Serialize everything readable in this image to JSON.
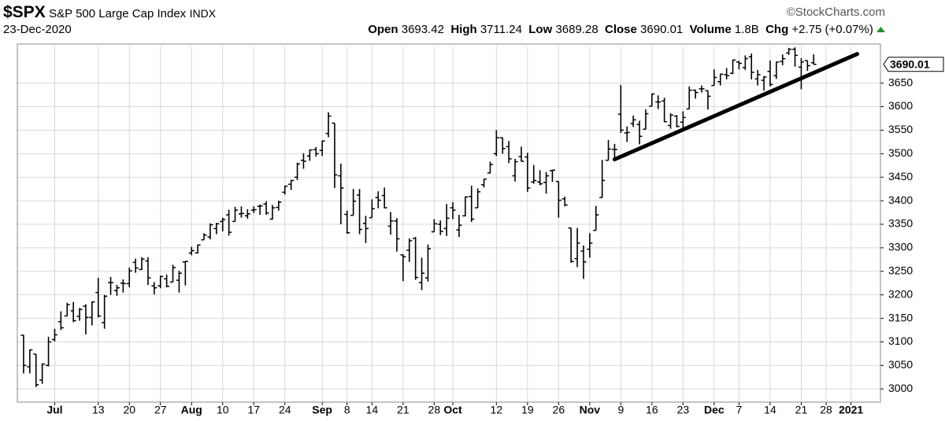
{
  "header": {
    "symbol": "$SPX",
    "name": "S&P 500 Large Cap Index",
    "exchange": "INDX",
    "source": "©StockCharts.com",
    "date": "23-Dec-2020",
    "open_label": "Open",
    "open": 3693.42,
    "high_label": "High",
    "high": 3711.24,
    "low_label": "Low",
    "low": 3689.28,
    "close_label": "Close",
    "close": 3690.01,
    "volume_label": "Volume",
    "volume": "1.8B",
    "change_label": "Chg",
    "change": "+2.75 (+0.07%)"
  },
  "chart_data": {
    "type": "ohlc",
    "color": "#000000",
    "grid": true,
    "ylim": [
      2972,
      3728
    ],
    "yticks": [
      3000,
      3050,
      3100,
      3150,
      3200,
      3250,
      3300,
      3350,
      3400,
      3450,
      3500,
      3550,
      3600,
      3650
    ],
    "categories": [
      null,
      null,
      null,
      null,
      null,
      "Jul",
      null,
      null,
      null,
      null,
      null,
      null,
      "13",
      null,
      null,
      null,
      null,
      "20",
      null,
      null,
      null,
      null,
      "27",
      null,
      null,
      null,
      null,
      "Aug",
      null,
      null,
      null,
      null,
      "10",
      null,
      null,
      null,
      null,
      "17",
      null,
      null,
      null,
      null,
      "24",
      null,
      null,
      null,
      null,
      null,
      "Sep",
      null,
      null,
      null,
      "8",
      null,
      null,
      null,
      "14",
      null,
      null,
      null,
      null,
      "21",
      null,
      null,
      null,
      null,
      "28",
      null,
      null,
      "Oct",
      null,
      null,
      null,
      null,
      null,
      null,
      "12",
      null,
      null,
      null,
      null,
      "19",
      null,
      null,
      null,
      null,
      "26",
      null,
      null,
      null,
      null,
      "Nov",
      null,
      null,
      null,
      null,
      "9",
      null,
      null,
      null,
      null,
      "16",
      null,
      null,
      null,
      null,
      "23",
      null,
      null,
      null,
      null,
      "Dec",
      null,
      null,
      null,
      "7",
      null,
      null,
      null,
      null,
      "14",
      null,
      null,
      null,
      null,
      "21",
      null,
      null,
      null,
      "28",
      null,
      null,
      null,
      "2021",
      null,
      null,
      null,
      null
    ],
    "open": [
      3114,
      3047,
      3074,
      3019,
      3050,
      3105,
      3143,
      3155,
      3166,
      3154,
      3176,
      3152,
      3205,
      3141,
      3226,
      3209,
      3225,
      3224,
      3269,
      3254,
      3272,
      3219,
      3219,
      3234,
      3227,
      3231,
      3270,
      3289,
      3289,
      3317,
      3323,
      3341,
      3356,
      3370,
      3356,
      3372,
      3368,
      3380,
      3388,
      3393,
      3361,
      3386,
      3418,
      3435,
      3450,
      3486,
      3495,
      3509,
      3507,
      3543,
      3565,
      3453,
      3371,
      3369,
      3412,
      3352,
      3364,
      3407,
      3411,
      3346,
      3357,
      3285,
      3295,
      3320,
      3226,
      3236,
      3334,
      3350,
      3341,
      3385,
      3338,
      3368,
      3409,
      3385,
      3434,
      3459,
      3500,
      3534,
      3515,
      3453,
      3494,
      3493,
      3440,
      3440,
      3439,
      3464,
      3441,
      3404,
      3342,
      3277,
      3293,
      3297,
      3337,
      3407,
      3486,
      3509,
      3584,
      3544,
      3564,
      3562,
      3552,
      3601,
      3610,
      3612,
      3560,
      3580,
      3567,
      3595,
      3635,
      3638,
      3634,
      3645,
      3653,
      3668,
      3671,
      3695,
      3683,
      3706,
      3659,
      3656,
      3675,
      3666,
      3696,
      3714,
      3722,
      3684,
      3698,
      3693.42,
      null,
      null,
      null,
      null,
      null,
      null,
      null,
      null,
      null,
      null
    ],
    "high": [
      3115,
      3084,
      3074,
      3054,
      3111,
      3128,
      3165,
      3183,
      3185,
      3172,
      3180,
      3186,
      3236,
      3200,
      3238,
      3221,
      3233,
      3258,
      3277,
      3280,
      3280,
      3227,
      3241,
      3243,
      3264,
      3251,
      3272,
      3302,
      3307,
      3331,
      3352,
      3353,
      3364,
      3381,
      3387,
      3388,
      3382,
      3388,
      3392,
      3399,
      3391,
      3400,
      3432,
      3444,
      3481,
      3501,
      3509,
      3514,
      3528,
      3588,
      3565,
      3479,
      3379,
      3425,
      3425,
      3368,
      3403,
      3420,
      3428,
      3376,
      3363,
      3286,
      3320,
      3323,
      3279,
      3307,
      3361,
      3358,
      3393,
      3397,
      3370,
      3409,
      3432,
      3426,
      3447,
      3483,
      3550,
      3534,
      3527,
      3489,
      3515,
      3502,
      3476,
      3465,
      3461,
      3466,
      3441,
      3409,
      3342,
      3342,
      3305,
      3331,
      3389,
      3487,
      3529,
      3521,
      3646,
      3558,
      3581,
      3570,
      3594,
      3628,
      3624,
      3619,
      3586,
      3582,
      3590,
      3643,
      3636,
      3645,
      3634,
      3679,
      3670,
      3682,
      3700,
      3697,
      3709,
      3713,
      3678,
      3665,
      3698,
      3695,
      3711,
      3725,
      3726,
      3703,
      3698,
      3711.24,
      null,
      null,
      null,
      null,
      null,
      null,
      null,
      null,
      null,
      null
    ],
    "low": [
      3033,
      3033,
      3004,
      3011,
      3048,
      3101,
      3125,
      3155,
      3142,
      3145,
      3116,
      3135,
      3152,
      3128,
      3200,
      3198,
      3205,
      3216,
      3247,
      3253,
      3221,
      3201,
      3214,
      3216,
      3227,
      3205,
      3220,
      3284,
      3288,
      3317,
      3318,
      3329,
      3335,
      3326,
      3356,
      3364,
      3362,
      3374,
      3370,
      3370,
      3360,
      3379,
      3413,
      3423,
      3444,
      3468,
      3485,
      3494,
      3495,
      3535,
      3427,
      3350,
      3330,
      3369,
      3329,
      3310,
      3364,
      3384,
      3384,
      3328,
      3292,
      3229,
      3270,
      3232,
      3210,
      3228,
      3334,
      3327,
      3325,
      3361,
      3323,
      3367,
      3355,
      3385,
      3428,
      3458,
      3495,
      3500,
      3480,
      3441,
      3483,
      3419,
      3436,
      3433,
      3415,
      3440,
      3364,
      3388,
      3268,
      3259,
      3234,
      3279,
      3337,
      3406,
      3486,
      3484,
      3544,
      3525,
      3557,
      3520,
      3552,
      3601,
      3595,
      3567,
      3553,
      3556,
      3553,
      3595,
      3617,
      3630,
      3594,
      3645,
      3645,
      3658,
      3669,
      3679,
      3678,
      3658,
      3645,
      3634,
      3643,
      3659,
      3688,
      3710,
      3685,
      3637,
      3676,
      3689.28,
      null,
      null,
      null,
      null,
      null,
      null,
      null,
      null,
      null,
      null
    ],
    "close": [
      3050,
      3083,
      3009,
      3053,
      3100,
      3115,
      3130,
      3179,
      3145,
      3169,
      3152,
      3185,
      3155,
      3197,
      3226,
      3215,
      3224,
      3251,
      3257,
      3276,
      3236,
      3215,
      3239,
      3218,
      3258,
      3246,
      3271,
      3294,
      3306,
      3327,
      3349,
      3351,
      3360,
      3333,
      3380,
      3373,
      3372,
      3381,
      3389,
      3374,
      3385,
      3397,
      3431,
      3443,
      3478,
      3484,
      3508,
      3500,
      3527,
      3580,
      3455,
      3427,
      3332,
      3399,
      3339,
      3341,
      3383,
      3401,
      3385,
      3357,
      3319,
      3281,
      3315,
      3237,
      3246,
      3298,
      3351,
      3335,
      3363,
      3380,
      3348,
      3408,
      3361,
      3419,
      3446,
      3477,
      3534,
      3511,
      3489,
      3483,
      3484,
      3427,
      3443,
      3436,
      3453,
      3465,
      3401,
      3391,
      3271,
      3310,
      3270,
      3310,
      3370,
      3443,
      3510,
      3509,
      3550,
      3545,
      3572,
      3537,
      3585,
      3627,
      3610,
      3568,
      3582,
      3558,
      3577,
      3635,
      3630,
      3638,
      3622,
      3662,
      3669,
      3666,
      3699,
      3692,
      3702,
      3673,
      3668,
      3663,
      3647,
      3695,
      3702,
      3722,
      3709,
      3695,
      3687,
      3690.01,
      null,
      null,
      null,
      null,
      null,
      null,
      null,
      null,
      null,
      null
    ],
    "trendline": {
      "x": [
        95,
        134
      ],
      "values": [
        3488,
        3712
      ]
    }
  }
}
